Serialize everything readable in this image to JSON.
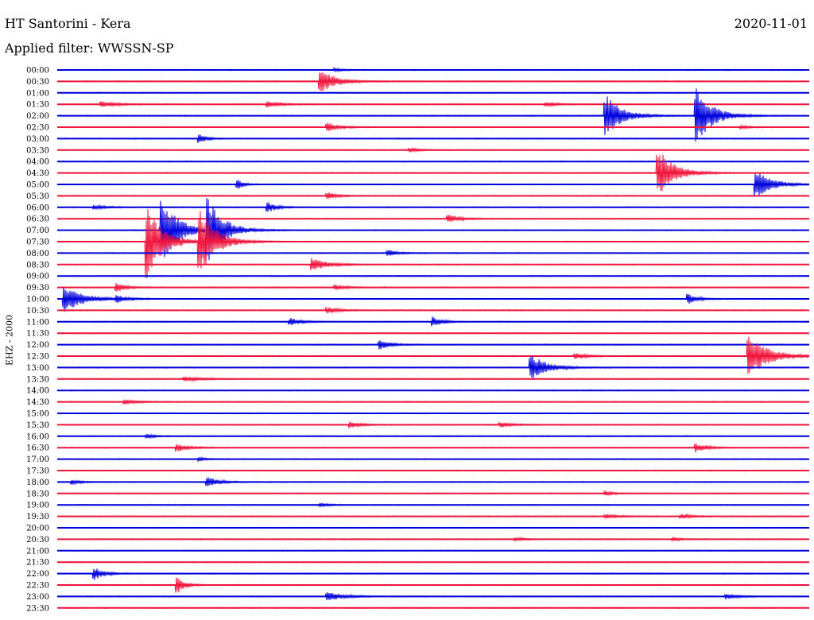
{
  "header": {
    "station": "HT Santorini - Kera",
    "filter": "Applied filter: WWSSN-SP",
    "date": "2020-11-01"
  },
  "channel_label": "EHZ - 2000",
  "colors": {
    "blue": "#0000dd",
    "red": "#f0153c"
  },
  "chart_data": {
    "type": "line",
    "title": "HT Santorini - Kera",
    "subtitle": "Applied filter: WWSSN-SP",
    "ylabel": "EHZ - 2000",
    "row_labels": [
      "00:00",
      "00:30",
      "01:00",
      "01:30",
      "02:00",
      "02:30",
      "03:00",
      "03:30",
      "04:00",
      "04:30",
      "05:00",
      "05:30",
      "06:00",
      "06:30",
      "07:00",
      "07:30",
      "08:00",
      "08:30",
      "09:00",
      "09:30",
      "10:00",
      "10:30",
      "11:00",
      "11:30",
      "12:00",
      "12:30",
      "13:00",
      "13:30",
      "14:00",
      "14:30",
      "15:00",
      "15:30",
      "16:00",
      "16:30",
      "17:00",
      "17:30",
      "18:00",
      "18:30",
      "19:00",
      "19:30",
      "20:00",
      "20:30",
      "21:00",
      "21:30",
      "22:00",
      "22:30",
      "23:00",
      "23:30"
    ],
    "row_colors": [
      "blue",
      "red"
    ],
    "events": [
      {
        "row": 0,
        "t": 0.37,
        "amp": 0.3,
        "dur": 0.012
      },
      {
        "row": 1,
        "t": 0.35,
        "amp": 2.2,
        "dur": 0.02
      },
      {
        "row": 3,
        "t": 0.06,
        "amp": 0.5,
        "dur": 0.02
      },
      {
        "row": 3,
        "t": 0.28,
        "amp": 0.5,
        "dur": 0.02
      },
      {
        "row": 3,
        "t": 0.65,
        "amp": 0.4,
        "dur": 0.015
      },
      {
        "row": 4,
        "t": 0.73,
        "amp": 4.0,
        "dur": 0.02
      },
      {
        "row": 4,
        "t": 0.85,
        "amp": 5.5,
        "dur": 0.02
      },
      {
        "row": 5,
        "t": 0.36,
        "amp": 0.8,
        "dur": 0.015
      },
      {
        "row": 5,
        "t": 0.91,
        "amp": 0.3,
        "dur": 0.012
      },
      {
        "row": 6,
        "t": 0.19,
        "amp": 0.9,
        "dur": 0.008
      },
      {
        "row": 7,
        "t": 0.47,
        "amp": 0.4,
        "dur": 0.012
      },
      {
        "row": 9,
        "t": 0.8,
        "amp": 4.5,
        "dur": 0.02
      },
      {
        "row": 10,
        "t": 0.24,
        "amp": 0.9,
        "dur": 0.008
      },
      {
        "row": 10,
        "t": 0.93,
        "amp": 2.6,
        "dur": 0.02
      },
      {
        "row": 11,
        "t": 0.36,
        "amp": 0.7,
        "dur": 0.012
      },
      {
        "row": 12,
        "t": 0.05,
        "amp": 0.4,
        "dur": 0.015
      },
      {
        "row": 12,
        "t": 0.28,
        "amp": 1.0,
        "dur": 0.012
      },
      {
        "row": 13,
        "t": 0.52,
        "amp": 0.8,
        "dur": 0.015
      },
      {
        "row": 14,
        "t": 0.14,
        "amp": 6.5,
        "dur": 0.02
      },
      {
        "row": 14,
        "t": 0.2,
        "amp": 6.0,
        "dur": 0.02
      },
      {
        "row": 15,
        "t": 0.12,
        "amp": 7.0,
        "dur": 0.02
      },
      {
        "row": 15,
        "t": 0.19,
        "amp": 6.5,
        "dur": 0.02
      },
      {
        "row": 16,
        "t": 0.44,
        "amp": 0.6,
        "dur": 0.012
      },
      {
        "row": 17,
        "t": 0.34,
        "amp": 1.2,
        "dur": 0.02
      },
      {
        "row": 19,
        "t": 0.08,
        "amp": 0.8,
        "dur": 0.012
      },
      {
        "row": 19,
        "t": 0.37,
        "amp": 0.5,
        "dur": 0.015
      },
      {
        "row": 20,
        "t": 0.01,
        "amp": 2.5,
        "dur": 0.025
      },
      {
        "row": 20,
        "t": 0.08,
        "amp": 0.6,
        "dur": 0.012
      },
      {
        "row": 20,
        "t": 0.84,
        "amp": 0.9,
        "dur": 0.012
      },
      {
        "row": 21,
        "t": 0.36,
        "amp": 0.6,
        "dur": 0.015
      },
      {
        "row": 22,
        "t": 0.31,
        "amp": 0.7,
        "dur": 0.015
      },
      {
        "row": 22,
        "t": 0.5,
        "amp": 0.9,
        "dur": 0.012
      },
      {
        "row": 24,
        "t": 0.43,
        "amp": 1.0,
        "dur": 0.012
      },
      {
        "row": 25,
        "t": 0.69,
        "amp": 0.6,
        "dur": 0.015
      },
      {
        "row": 25,
        "t": 0.92,
        "amp": 4.0,
        "dur": 0.025
      },
      {
        "row": 26,
        "t": 0.63,
        "amp": 2.5,
        "dur": 0.02
      },
      {
        "row": 27,
        "t": 0.17,
        "amp": 0.4,
        "dur": 0.025
      },
      {
        "row": 29,
        "t": 0.09,
        "amp": 0.5,
        "dur": 0.015
      },
      {
        "row": 31,
        "t": 0.39,
        "amp": 0.6,
        "dur": 0.015
      },
      {
        "row": 31,
        "t": 0.59,
        "amp": 0.5,
        "dur": 0.015
      },
      {
        "row": 32,
        "t": 0.12,
        "amp": 0.4,
        "dur": 0.01
      },
      {
        "row": 33,
        "t": 0.16,
        "amp": 0.7,
        "dur": 0.015
      },
      {
        "row": 33,
        "t": 0.85,
        "amp": 0.8,
        "dur": 0.015
      },
      {
        "row": 34,
        "t": 0.19,
        "amp": 0.3,
        "dur": 0.01
      },
      {
        "row": 36,
        "t": 0.02,
        "amp": 0.4,
        "dur": 0.012
      },
      {
        "row": 36,
        "t": 0.2,
        "amp": 1.0,
        "dur": 0.015
      },
      {
        "row": 37,
        "t": 0.73,
        "amp": 0.4,
        "dur": 0.01
      },
      {
        "row": 38,
        "t": 0.35,
        "amp": 0.3,
        "dur": 0.012
      },
      {
        "row": 39,
        "t": 0.73,
        "amp": 0.4,
        "dur": 0.015
      },
      {
        "row": 39,
        "t": 0.83,
        "amp": 0.5,
        "dur": 0.012
      },
      {
        "row": 41,
        "t": 0.61,
        "amp": 0.3,
        "dur": 0.012
      },
      {
        "row": 41,
        "t": 0.82,
        "amp": 0.3,
        "dur": 0.01
      },
      {
        "row": 44,
        "t": 0.05,
        "amp": 1.2,
        "dur": 0.012
      },
      {
        "row": 45,
        "t": 0.16,
        "amp": 1.6,
        "dur": 0.01
      },
      {
        "row": 46,
        "t": 0.36,
        "amp": 0.9,
        "dur": 0.02
      },
      {
        "row": 46,
        "t": 0.89,
        "amp": 0.5,
        "dur": 0.015
      }
    ]
  }
}
